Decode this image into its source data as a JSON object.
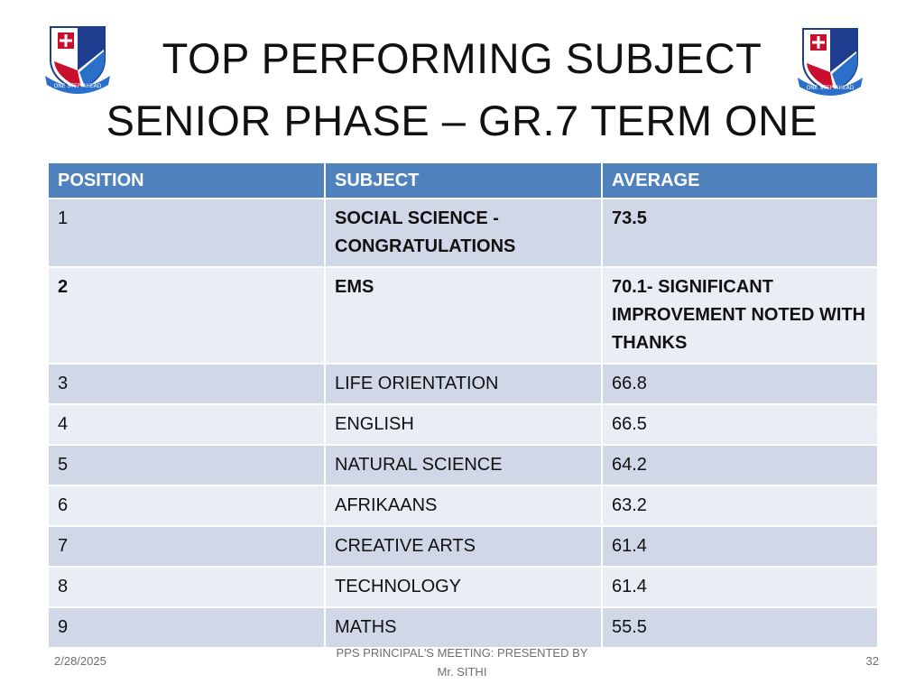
{
  "slide": {
    "title_line1": "TOP  PERFORMING  SUBJECT",
    "title_line2": "SENIOR  PHASE – GR.7 TERM ONE"
  },
  "table": {
    "headers": [
      "POSITION",
      "SUBJECT",
      "AVERAGE"
    ],
    "rows": [
      {
        "position": "1",
        "subject": "SOCIAL  SCIENCE - CONGRATULATIONS",
        "average": "73.5"
      },
      {
        "position": "2",
        "subject": "EMS",
        "average": "70.1- SIGNIFICANT IMPROVEMENT NOTED WITH  THANKS"
      },
      {
        "position": "3",
        "subject": "LIFE ORIENTATION",
        "average": "66.8"
      },
      {
        "position": "4",
        "subject": "ENGLISH",
        "average": "66.5"
      },
      {
        "position": "5",
        "subject": "NATURAL  SCIENCE",
        "average": "64.2"
      },
      {
        "position": "6",
        "subject": "AFRIKAANS",
        "average": "63.2"
      },
      {
        "position": "7",
        "subject": "CREATIVE  ARTS",
        "average": "61.4"
      },
      {
        "position": "8",
        "subject": "TECHNOLOGY",
        "average": "61.4"
      },
      {
        "position": "9",
        "subject": "MATHS",
        "average": "55.5"
      }
    ]
  },
  "footer": {
    "date": "2/28/2025",
    "presenter_line1": "PPS  PRINCIPAL'S MEETING: PRESENTED  BY",
    "presenter_line2": "Mr. SITHI",
    "page_number": "32"
  },
  "crest": {
    "motto": "ONE STEP AHEAD",
    "colors": {
      "navy": "#1f3d8f",
      "red": "#c8102e",
      "blue": "#2a6fc9",
      "white": "#ffffff"
    }
  },
  "theme": {
    "header_bg": "#4f81bd",
    "row_odd_bg": "#d0d8e8",
    "row_even_bg": "#e9edf4"
  }
}
